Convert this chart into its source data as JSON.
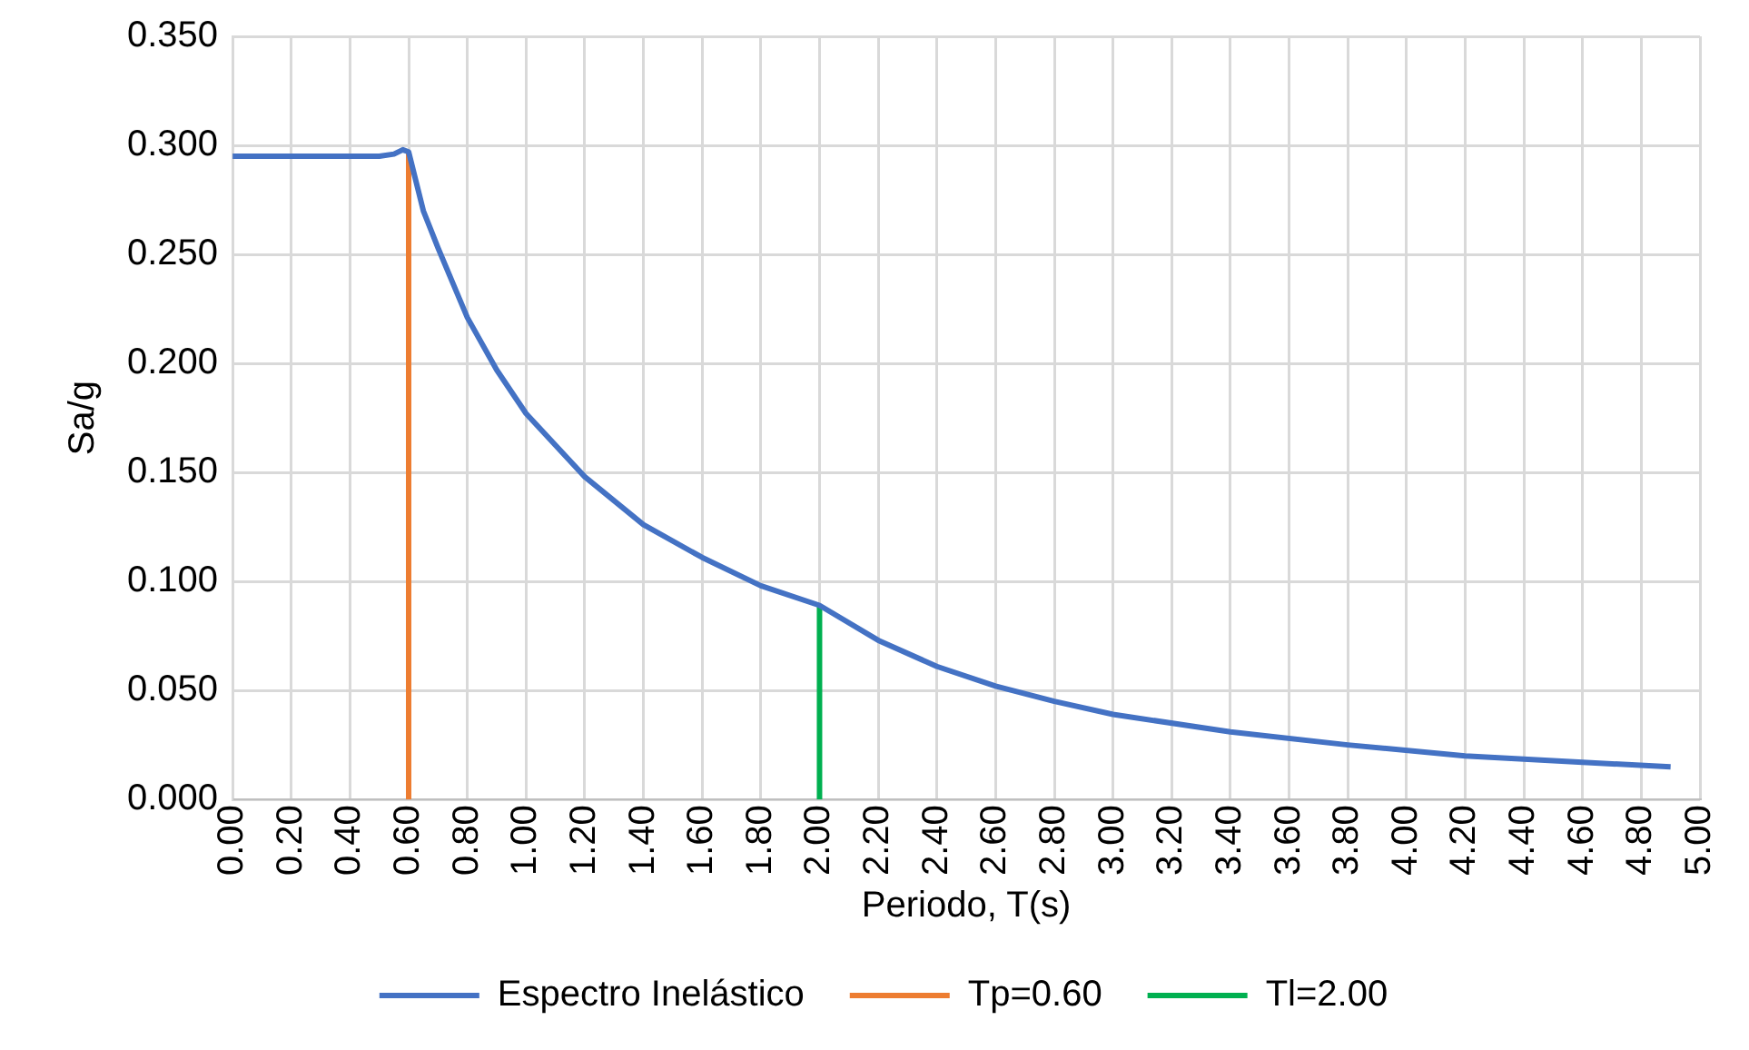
{
  "chart_data": {
    "type": "line",
    "xlabel": "Periodo, T(s)",
    "ylabel": "Sa/g",
    "xlim": [
      0,
      5
    ],
    "ylim": [
      0,
      0.35
    ],
    "xticks": [
      {
        "value": 0,
        "label": "0.00"
      },
      {
        "value": 0.2,
        "label": "0.20"
      },
      {
        "value": 0.4,
        "label": "0.40"
      },
      {
        "value": 0.6,
        "label": "0.60"
      },
      {
        "value": 0.8,
        "label": "0.80"
      },
      {
        "value": 1,
        "label": "1.00"
      },
      {
        "value": 1.2,
        "label": "1.20"
      },
      {
        "value": 1.4,
        "label": "1.40"
      },
      {
        "value": 1.6,
        "label": "1.60"
      },
      {
        "value": 1.8,
        "label": "1.80"
      },
      {
        "value": 2,
        "label": "2.00"
      },
      {
        "value": 2.2,
        "label": "2.20"
      },
      {
        "value": 2.4,
        "label": "2.40"
      },
      {
        "value": 2.6,
        "label": "2.60"
      },
      {
        "value": 2.8,
        "label": "2.80"
      },
      {
        "value": 3,
        "label": "3.00"
      },
      {
        "value": 3.2,
        "label": "3.20"
      },
      {
        "value": 3.4,
        "label": "3.40"
      },
      {
        "value": 3.6,
        "label": "3.60"
      },
      {
        "value": 3.8,
        "label": "3.80"
      },
      {
        "value": 4,
        "label": "4.00"
      },
      {
        "value": 4.2,
        "label": "4.20"
      },
      {
        "value": 4.4,
        "label": "4.40"
      },
      {
        "value": 4.6,
        "label": "4.60"
      },
      {
        "value": 4.8,
        "label": "4.80"
      },
      {
        "value": 5,
        "label": "5.00"
      }
    ],
    "yticks": [
      {
        "value": 0,
        "label": "0.000"
      },
      {
        "value": 0.05,
        "label": "0.050"
      },
      {
        "value": 0.1,
        "label": "0.100"
      },
      {
        "value": 0.15,
        "label": "0.150"
      },
      {
        "value": 0.2,
        "label": "0.200"
      },
      {
        "value": 0.25,
        "label": "0.250"
      },
      {
        "value": 0.3,
        "label": "0.300"
      },
      {
        "value": 0.35,
        "label": "0.350"
      }
    ],
    "grid": true,
    "legend": "bottom",
    "marker": "none",
    "line_style": "solid",
    "series": [
      {
        "name": "Espectro Inelástico",
        "color": "#4472c4",
        "x": [
          0,
          0.5,
          0.55,
          0.58,
          0.6,
          0.65,
          0.7,
          0.8,
          0.9,
          1.0,
          1.2,
          1.4,
          1.6,
          1.8,
          2.0,
          2.2,
          2.4,
          2.6,
          2.8,
          3.0,
          3.4,
          3.8,
          4.2,
          4.6,
          4.9
        ],
        "values": [
          0.295,
          0.295,
          0.296,
          0.298,
          0.297,
          0.27,
          0.253,
          0.221,
          0.197,
          0.177,
          0.148,
          0.126,
          0.111,
          0.098,
          0.089,
          0.073,
          0.061,
          0.052,
          0.045,
          0.039,
          0.031,
          0.025,
          0.02,
          0.017,
          0.015
        ]
      },
      {
        "name": "Tp=0.60",
        "color": "#ed7d31",
        "x": [
          0.6,
          0.6
        ],
        "values": [
          0,
          0.297
        ]
      },
      {
        "name": "Tl=2.00",
        "color": "#00b050",
        "x": [
          2,
          2
        ],
        "values": [
          0,
          0.089
        ]
      }
    ]
  }
}
